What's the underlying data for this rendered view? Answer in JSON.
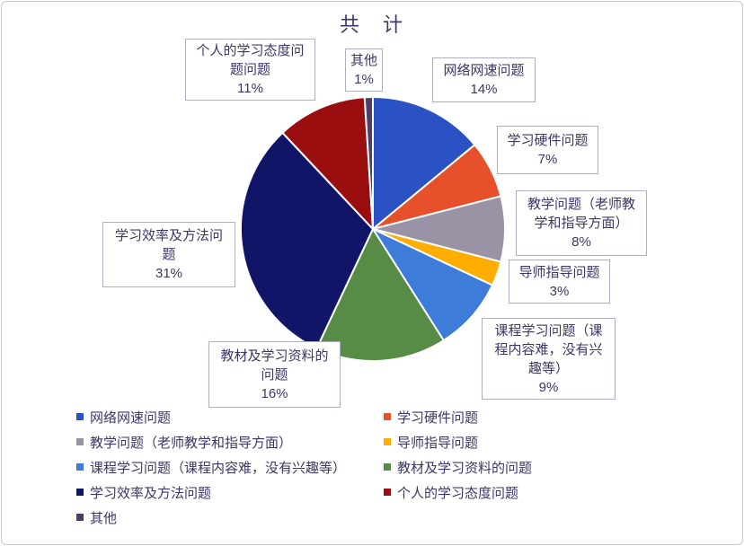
{
  "chart_data": {
    "type": "pie",
    "title": "共　计",
    "start_angle_deg": 0,
    "direction": "clockwise",
    "legend_position": "bottom",
    "border_color": "#cbcbcb",
    "label_text_color": "#3d3667",
    "label_box_border_color": "#aab0c2",
    "slices": [
      {
        "label": "网络网速问题",
        "callout": "网络网速问题",
        "value": 14,
        "pct_text": "14%",
        "color": "#2b52c4"
      },
      {
        "label": "学习硬件问题",
        "callout": "学习硬件问题",
        "value": 7,
        "pct_text": "7%",
        "color": "#e8502b"
      },
      {
        "label": "教学问题（老师教学和指导方面）",
        "callout": "教学问题（老师教学和指导方面）",
        "value": 8,
        "pct_text": "8%",
        "color": "#9a92a5"
      },
      {
        "label": "导师指导问题",
        "callout": "导师指导问题",
        "value": 3,
        "pct_text": "3%",
        "color": "#ffad01"
      },
      {
        "label": "课程学习问题（课程内容难，没有兴趣等）",
        "callout": "课程学习问题（课程内容难，没有兴趣等）",
        "value": 9,
        "pct_text": "9%",
        "color": "#3e7cd9"
      },
      {
        "label": "教材及学习资料的问题",
        "callout": "教材及学习资料的问题",
        "value": 16,
        "pct_text": "16%",
        "color": "#578c46"
      },
      {
        "label": "学习效率及方法问题",
        "callout": "学习效率及方法问题",
        "value": 31,
        "pct_text": "31%",
        "color": "#111568"
      },
      {
        "label": "个人的学习态度问题",
        "callout": "个人的学习态度问题问题",
        "value": 11,
        "pct_text": "11%",
        "color": "#9a0e10"
      },
      {
        "label": "其他",
        "callout": "其他",
        "value": 1,
        "pct_text": "1%",
        "color": "#4f3e64"
      }
    ]
  }
}
